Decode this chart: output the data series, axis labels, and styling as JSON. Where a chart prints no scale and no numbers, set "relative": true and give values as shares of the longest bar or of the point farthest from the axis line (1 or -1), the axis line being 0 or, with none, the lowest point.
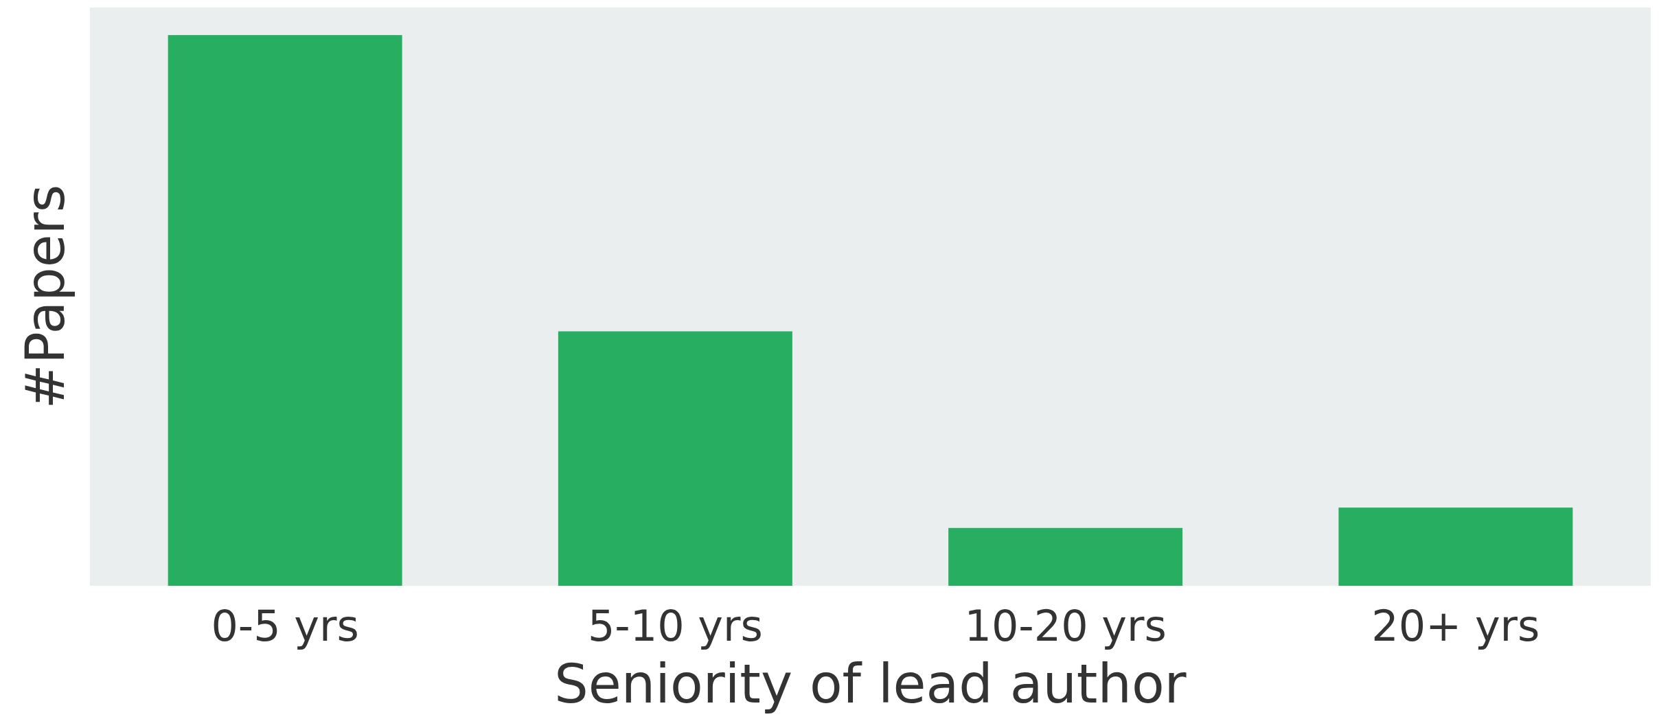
{
  "chart_data": {
    "type": "bar",
    "xlabel": "Seniority of lead author",
    "ylabel": "#Papers",
    "categories": [
      "0-5 yrs",
      "5-10 yrs",
      "10-20 yrs",
      "20+ yrs"
    ],
    "values": [
      1,
      0.462,
      0.105,
      0.142
    ],
    "color": "#27ae60",
    "relative": true
  }
}
